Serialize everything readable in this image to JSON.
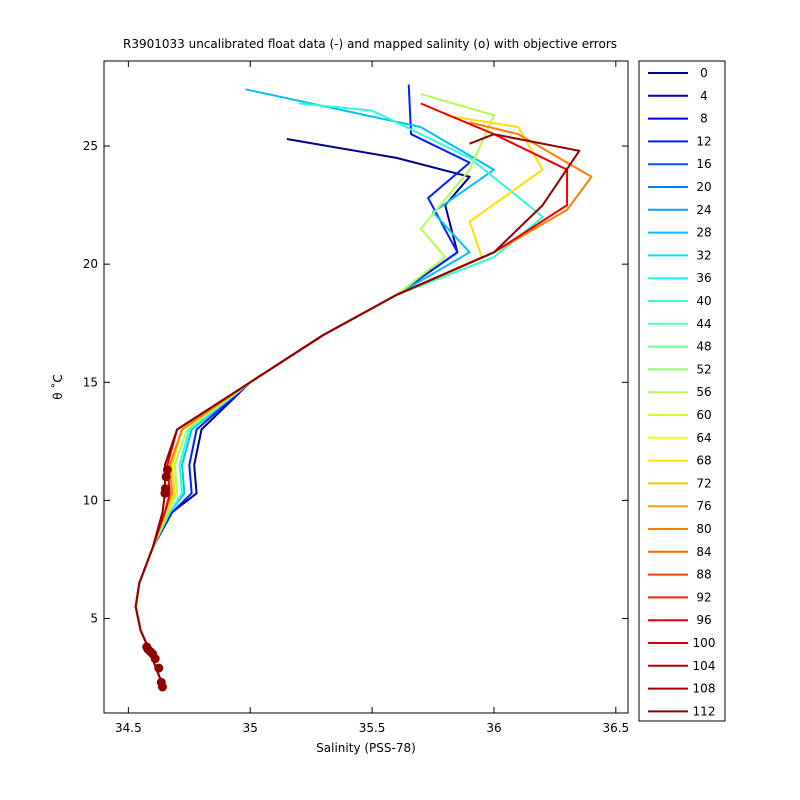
{
  "chart_data": {
    "type": "line",
    "title": "R3901033 uncalibrated float data (-) and mapped salinity (o) with objective errors",
    "xlabel": "Salinity (PSS-78)",
    "ylabel": "θ ˚C",
    "xlim": [
      34.4,
      36.55
    ],
    "ylim": [
      1.0,
      28.6
    ],
    "xticks": [
      34.5,
      35,
      35.5,
      36,
      36.5
    ],
    "xtick_labels": [
      "34.5",
      "35",
      "35.5",
      "36",
      "36.5"
    ],
    "yticks": [
      5,
      10,
      15,
      20,
      25
    ],
    "ytick_labels": [
      "5",
      "10",
      "15",
      "20",
      "25"
    ],
    "grid": false,
    "legend_position": "outside-right",
    "legend_entries": [
      "0",
      "4",
      "8",
      "12",
      "16",
      "20",
      "24",
      "28",
      "32",
      "36",
      "40",
      "44",
      "48",
      "52",
      "56",
      "60",
      "64",
      "68",
      "72",
      "76",
      "80",
      "84",
      "88",
      "92",
      "96",
      "100",
      "104",
      "108",
      "112"
    ],
    "series_colors": [
      "#00008f",
      "#0000bf",
      "#0000ef",
      "#001fff",
      "#0050ff",
      "#0080ff",
      "#00a0ff",
      "#00c0ff",
      "#00e0ff",
      "#10ffef",
      "#30ffcf",
      "#50ffaf",
      "#70ff8f",
      "#90ff6f",
      "#b0ff4f",
      "#d0ff2f",
      "#efff10",
      "#ffe000",
      "#ffc000",
      "#ffa000",
      "#ff8000",
      "#ff6000",
      "#ff4000",
      "#ff2000",
      "#ef0000",
      "#d00000",
      "#b00000",
      "#a00000",
      "#8f0000"
    ],
    "series": [
      {
        "name": "0",
        "x": [
          34.64,
          34.58,
          34.55,
          34.53,
          34.545,
          34.6,
          34.68,
          34.78,
          34.77,
          34.8,
          35.0,
          35.3,
          35.6,
          35.85,
          35.8,
          35.9,
          35.6,
          35.15
        ],
        "y": [
          2.2,
          3.8,
          4.5,
          5.5,
          6.5,
          8.0,
          9.5,
          10.3,
          11.5,
          13.0,
          15.0,
          17.0,
          18.7,
          20.5,
          22.5,
          23.7,
          24.5,
          25.3
        ]
      },
      {
        "name": "12",
        "x": [
          34.64,
          34.58,
          34.55,
          34.53,
          34.545,
          34.6,
          34.68,
          34.76,
          34.75,
          34.78,
          35.0,
          35.3,
          35.6,
          35.85,
          35.73,
          35.9,
          35.66,
          35.65
        ],
        "y": [
          2.2,
          3.8,
          4.5,
          5.5,
          6.5,
          8.0,
          9.5,
          10.3,
          11.5,
          13.0,
          15.0,
          17.0,
          18.7,
          20.5,
          22.8,
          24.3,
          25.5,
          27.6
        ]
      },
      {
        "name": "28",
        "x": [
          34.64,
          34.58,
          34.55,
          34.53,
          34.545,
          34.6,
          34.67,
          34.73,
          34.72,
          34.76,
          35.0,
          35.3,
          35.6,
          35.9,
          35.75,
          36.0,
          35.7,
          34.98
        ],
        "y": [
          2.2,
          3.8,
          4.5,
          5.5,
          6.5,
          8.0,
          9.5,
          10.3,
          11.5,
          13.0,
          15.0,
          17.0,
          18.7,
          20.5,
          22.2,
          24.0,
          25.8,
          27.4
        ]
      },
      {
        "name": "40",
        "x": [
          34.64,
          34.58,
          34.55,
          34.53,
          34.545,
          34.6,
          34.67,
          34.72,
          34.71,
          34.75,
          35.0,
          35.3,
          35.6,
          36.0,
          36.2,
          35.9,
          35.5,
          35.2
        ],
        "y": [
          2.2,
          3.8,
          4.5,
          5.5,
          6.5,
          8.0,
          9.5,
          10.3,
          11.5,
          13.0,
          15.0,
          17.0,
          18.7,
          20.3,
          22.0,
          24.5,
          26.5,
          26.8
        ]
      },
      {
        "name": "56",
        "x": [
          34.64,
          34.58,
          34.55,
          34.53,
          34.545,
          34.6,
          34.66,
          34.7,
          34.69,
          34.74,
          35.0,
          35.3,
          35.6,
          35.8,
          35.7,
          35.9,
          36.0,
          35.7
        ],
        "y": [
          2.2,
          3.8,
          4.5,
          5.5,
          6.5,
          8.0,
          9.5,
          10.3,
          11.5,
          13.0,
          15.0,
          17.0,
          18.7,
          20.3,
          21.5,
          24.0,
          26.3,
          27.2
        ]
      },
      {
        "name": "68",
        "x": [
          34.64,
          34.58,
          34.55,
          34.53,
          34.545,
          34.6,
          34.66,
          34.69,
          34.68,
          34.72,
          35.0,
          35.3,
          35.6,
          35.95,
          35.9,
          36.2,
          36.1,
          35.8
        ],
        "y": [
          2.2,
          3.8,
          4.5,
          5.5,
          6.5,
          8.0,
          9.5,
          10.3,
          11.5,
          13.0,
          15.0,
          17.0,
          18.7,
          20.3,
          21.8,
          24.0,
          25.8,
          26.3
        ]
      },
      {
        "name": "80",
        "x": [
          34.64,
          34.58,
          34.55,
          34.53,
          34.545,
          34.6,
          34.65,
          34.68,
          34.67,
          34.72,
          35.0,
          35.3,
          35.6,
          36.0,
          36.3,
          36.4,
          36.1,
          35.9
        ],
        "y": [
          2.2,
          3.8,
          4.5,
          5.5,
          6.5,
          8.0,
          9.5,
          10.3,
          11.5,
          13.0,
          15.0,
          17.0,
          18.7,
          20.5,
          22.3,
          23.7,
          25.5,
          26.0
        ]
      },
      {
        "name": "96",
        "x": [
          34.64,
          34.58,
          34.55,
          34.53,
          34.545,
          34.6,
          34.65,
          34.67,
          34.66,
          34.7,
          35.0,
          35.3,
          35.6,
          36.0,
          36.3,
          36.3,
          36.0,
          35.7
        ],
        "y": [
          2.2,
          3.8,
          4.5,
          5.5,
          6.5,
          8.0,
          9.5,
          10.3,
          11.5,
          13.0,
          15.0,
          17.0,
          18.7,
          20.5,
          22.5,
          24.0,
          25.5,
          26.8
        ]
      },
      {
        "name": "112",
        "x": [
          34.64,
          34.58,
          34.55,
          34.53,
          34.545,
          34.6,
          34.64,
          34.65,
          34.65,
          34.7,
          35.0,
          35.3,
          35.6,
          36.0,
          36.2,
          36.35,
          36.0,
          35.9
        ],
        "y": [
          2.2,
          3.8,
          4.5,
          5.5,
          6.5,
          8.0,
          9.5,
          10.3,
          11.5,
          13.0,
          15.0,
          17.0,
          18.7,
          20.5,
          22.5,
          24.8,
          25.5,
          25.1
        ]
      }
    ],
    "mapped_points": {
      "x": [
        34.64,
        34.635,
        34.625,
        34.61,
        34.6,
        34.59,
        34.58,
        34.575,
        34.65,
        34.652,
        34.655,
        34.66
      ],
      "y": [
        2.1,
        2.3,
        2.9,
        3.3,
        3.5,
        3.6,
        3.7,
        3.8,
        10.3,
        10.5,
        11.0,
        11.3
      ]
    }
  }
}
